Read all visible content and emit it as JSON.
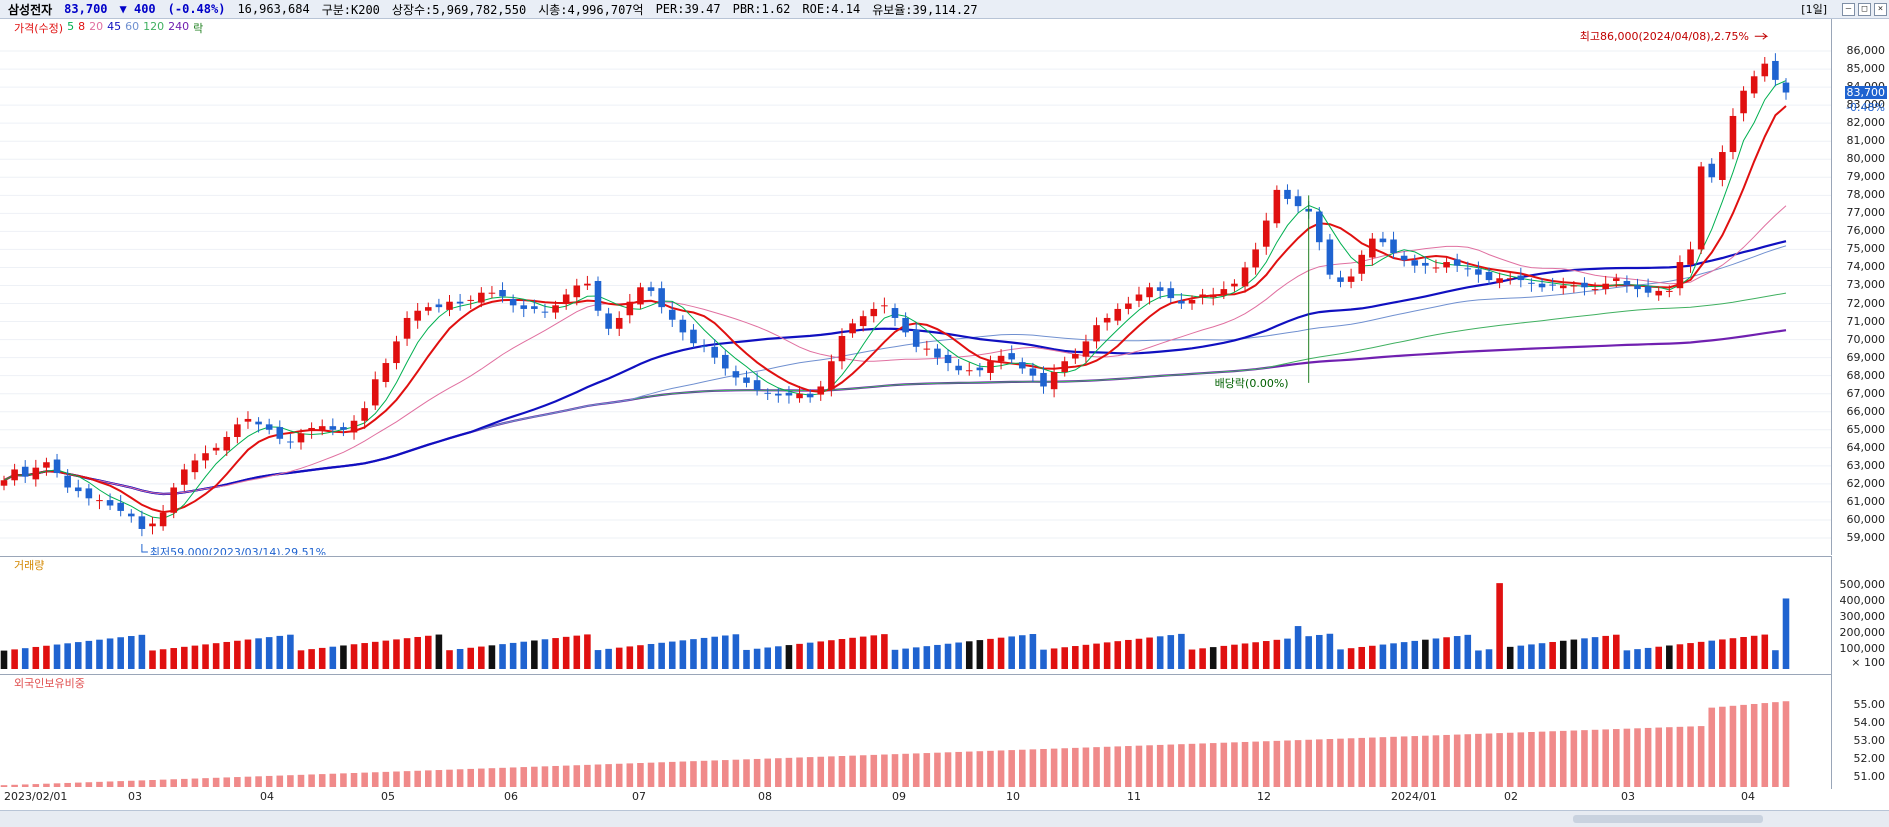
{
  "header": {
    "stock_name": "삼성전자",
    "price": "83,700",
    "change": "▼ 400",
    "change_pct": "(-0.48%)",
    "volume": "16,963,684",
    "market": "구분:K200",
    "shares": "상장수:5,969,782,550",
    "market_cap": "시총:4,996,707억",
    "per": "PER:39.47",
    "pbr": "PBR:1.62",
    "roe": "ROE:4.14",
    "holding": "유보율:39,114.27",
    "period": "[1일]"
  },
  "legend": {
    "title": "가격(수정)",
    "items": [
      {
        "label": "5",
        "color": "#00b050"
      },
      {
        "label": "8",
        "color": "#e01010"
      },
      {
        "label": "20",
        "color": "#e070a0"
      },
      {
        "label": "45",
        "color": "#1010c0"
      },
      {
        "label": "60",
        "color": "#7090d0"
      },
      {
        "label": "120",
        "color": "#40b060"
      },
      {
        "label": "240",
        "color": "#7020b0"
      },
      {
        "label": "락",
        "color": "#208020"
      }
    ]
  },
  "annotations": {
    "high": "최고86,000(2024/04/08),2.75%",
    "low": "최저59,000(2023/03/14),29.51%",
    "dividend": "배당락(0.00%)",
    "current_tag": "83,700",
    "current_pct": "-0.48%"
  },
  "volume_pane": {
    "title": "거래량",
    "ticks": [
      "500,000",
      "400,000",
      "300,000",
      "200,000",
      "100,000"
    ],
    "unit": "× 100"
  },
  "foreign_pane": {
    "title": "외국인보유비중",
    "ticks": [
      "55.00",
      "54.00",
      "53.00",
      "52.00",
      "51.00"
    ]
  },
  "x_axis": [
    "2023/02/01",
    "03",
    "04",
    "05",
    "06",
    "07",
    "08",
    "09",
    "10",
    "11",
    "12",
    "2024/01",
    "02",
    "03",
    "04"
  ],
  "colors": {
    "up": "#e01010",
    "down": "#1f63d0",
    "foreign_bar": "#f08a8a"
  },
  "chart_data": {
    "type": "candlestick",
    "price_ticks": [
      "86,000",
      "85,000",
      "84,000",
      "83,000",
      "82,000",
      "81,000",
      "80,000",
      "79,000",
      "78,000",
      "77,000",
      "76,000",
      "75,000",
      "74,000",
      "73,000",
      "72,000",
      "71,000",
      "70,000",
      "69,000",
      "68,000",
      "67,000",
      "66,000",
      "65,000",
      "64,000",
      "63,000",
      "62,000",
      "61,000",
      "60,000",
      "59,000"
    ],
    "ylim": [
      58500,
      87000
    ],
    "close": [
      62200,
      62800,
      62400,
      62900,
      63200,
      62600,
      61800,
      61600,
      61200,
      61100,
      60800,
      60500,
      60200,
      59500,
      59800,
      60400,
      61800,
      62800,
      63300,
      63700,
      64000,
      64600,
      65300,
      65600,
      65300,
      65000,
      64500,
      64300,
      64800,
      65100,
      65200,
      65000,
      65000,
      65500,
      66200,
      67800,
      68700,
      69900,
      71200,
      71600,
      71800,
      71800,
      72100,
      72000,
      72200,
      72600,
      72600,
      72400,
      71900,
      71700,
      71700,
      71500,
      71900,
      72500,
      73000,
      73100,
      71600,
      70600,
      71200,
      72100,
      72900,
      72700,
      71800,
      71100,
      70400,
      69800,
      69600,
      69000,
      68400,
      67900,
      67600,
      67200,
      67000,
      66900,
      66900,
      67000,
      66800,
      67400,
      68800,
      70200,
      70900,
      71300,
      71700,
      71900,
      71200,
      70400,
      69600,
      69500,
      69000,
      68700,
      68300,
      68300,
      68300,
      68800,
      69100,
      68900,
      68400,
      68000,
      67400,
      68200,
      68800,
      69200,
      69900,
      70800,
      71200,
      71700,
      72000,
      72500,
      72900,
      72700,
      72300,
      72000,
      72200,
      72500,
      72500,
      72800,
      73100,
      74000,
      75000,
      76600,
      78300,
      77800,
      77400,
      77100,
      75400,
      73600,
      73200,
      73500,
      74700,
      75600,
      75400,
      74800,
      74400,
      74100,
      74100,
      74000,
      74300,
      74100,
      73900,
      73600,
      73300,
      73400,
      73400,
      73300,
      73100,
      72900,
      73000,
      73000,
      73000,
      72900,
      72800,
      73100,
      73400,
      73000,
      72800,
      72600,
      72700,
      72700,
      74300,
      75000,
      79600,
      79000,
      80400,
      82400,
      83800,
      84600,
      85300,
      84400,
      83700
    ],
    "ma_lines": [
      "5",
      "8",
      "20",
      "45",
      "60",
      "120",
      "240"
    ]
  }
}
